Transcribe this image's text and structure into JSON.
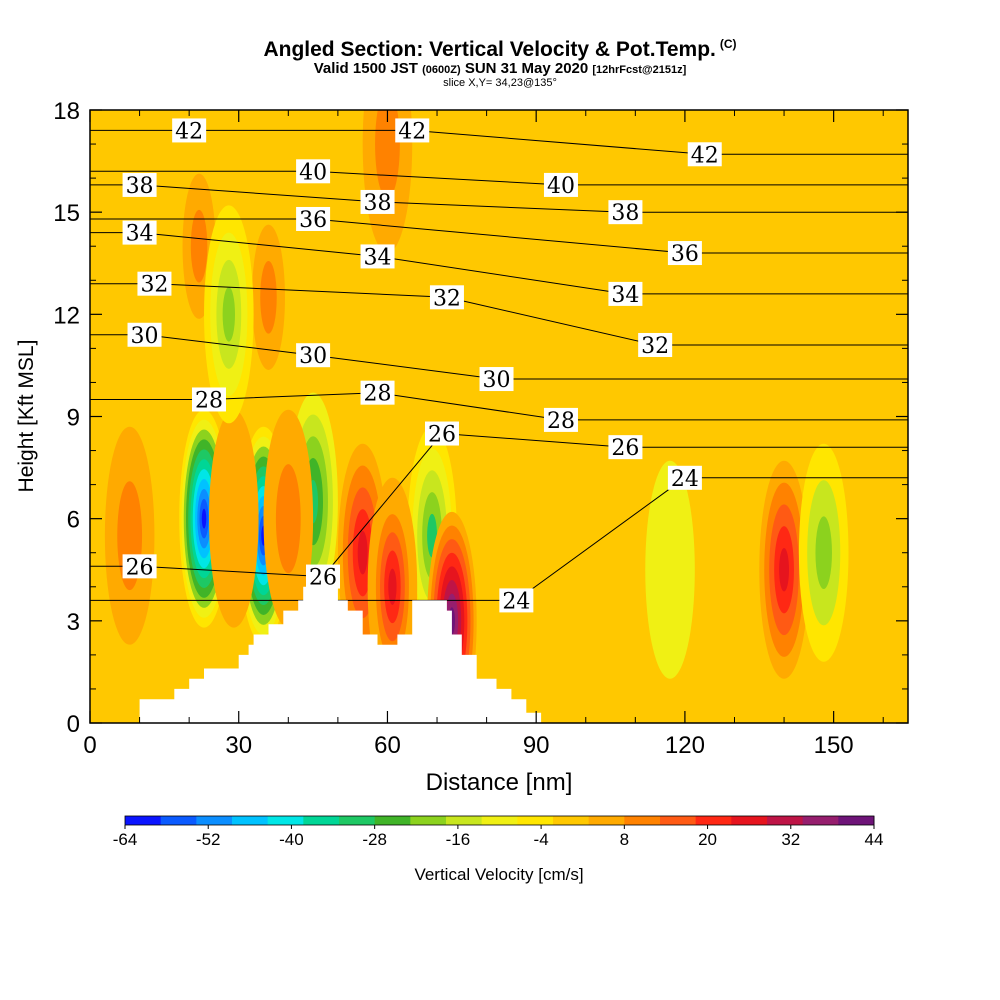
{
  "title": {
    "main": "Angled Section: Vertical Velocity & Pot.Temp.",
    "copyright": "(C)",
    "valid_prefix": "Valid 1500 JST",
    "utc": "(0600Z)",
    "date": "SUN 31 May 2020",
    "forecast": "[12hrFcst@2151z]",
    "slice": "slice X,Y= 34,23@135°"
  },
  "colors": {
    "terrain": "#ffffff",
    "frame": "#000000",
    "contour": "#000000",
    "scale": [
      "#0a14ff",
      "#0a5aff",
      "#0b8eff",
      "#00c2ff",
      "#00e6e6",
      "#00d696",
      "#1ec864",
      "#40b428",
      "#8cd21e",
      "#c8e61e",
      "#f0f014",
      "#ffe600",
      "#ffc800",
      "#ffaa00",
      "#ff8200",
      "#ff5a14",
      "#ff2814",
      "#e6141e",
      "#be1446",
      "#961e6e",
      "#6e1478"
    ]
  },
  "chart_data": {
    "type": "heatmap",
    "xlabel": "Distance [nm]",
    "ylabel": "Height [Kft MSL]",
    "xlim": [
      0,
      165
    ],
    "ylim": [
      0,
      18
    ],
    "xticks": [
      0,
      30,
      60,
      90,
      120,
      150
    ],
    "yticks": [
      0,
      3,
      6,
      9,
      12,
      15,
      18
    ],
    "colorbar": {
      "label": "Vertical Velocity [cm/s]",
      "tick_labels": [
        "-64",
        "-52",
        "-40",
        "-28",
        "-16",
        "-4",
        "8",
        "20",
        "32",
        "44"
      ],
      "range": [
        -64,
        44
      ]
    },
    "contour_labels": [
      {
        "text": "42",
        "x": 20,
        "y": 17.4
      },
      {
        "text": "42",
        "x": 65,
        "y": 17.4
      },
      {
        "text": "42",
        "x": 124,
        "y": 16.7
      },
      {
        "text": "40",
        "x": 45,
        "y": 16.2
      },
      {
        "text": "40",
        "x": 95,
        "y": 15.8
      },
      {
        "text": "38",
        "x": 10,
        "y": 15.8
      },
      {
        "text": "38",
        "x": 58,
        "y": 15.3
      },
      {
        "text": "38",
        "x": 108,
        "y": 15.0
      },
      {
        "text": "36",
        "x": 45,
        "y": 14.8
      },
      {
        "text": "36",
        "x": 120,
        "y": 13.8
      },
      {
        "text": "34",
        "x": 10,
        "y": 14.4
      },
      {
        "text": "34",
        "x": 58,
        "y": 13.7
      },
      {
        "text": "34",
        "x": 108,
        "y": 12.6
      },
      {
        "text": "32",
        "x": 13,
        "y": 12.9
      },
      {
        "text": "32",
        "x": 72,
        "y": 12.5
      },
      {
        "text": "32",
        "x": 114,
        "y": 11.1
      },
      {
        "text": "30",
        "x": 11,
        "y": 11.4
      },
      {
        "text": "30",
        "x": 45,
        "y": 10.8
      },
      {
        "text": "30",
        "x": 82,
        "y": 10.1
      },
      {
        "text": "28",
        "x": 24,
        "y": 9.5
      },
      {
        "text": "28",
        "x": 58,
        "y": 9.7
      },
      {
        "text": "28",
        "x": 95,
        "y": 8.9
      },
      {
        "text": "26",
        "x": 71,
        "y": 8.5
      },
      {
        "text": "26",
        "x": 108,
        "y": 8.1
      },
      {
        "text": "26",
        "x": 10,
        "y": 4.6
      },
      {
        "text": "26",
        "x": 47,
        "y": 4.3
      },
      {
        "text": "24",
        "x": 120,
        "y": 7.2
      },
      {
        "text": "24",
        "x": 86,
        "y": 3.6
      }
    ],
    "velocity_features": [
      {
        "x": 23,
        "y": 6.0,
        "w": -60
      },
      {
        "x": 35,
        "y": 5.5,
        "w": -60
      },
      {
        "x": 45,
        "y": 6.5,
        "w": -30
      },
      {
        "x": 69,
        "y": 5.5,
        "w": -28
      },
      {
        "x": 8,
        "y": 5.5,
        "w": 10
      },
      {
        "x": 29,
        "y": 6.0,
        "w": 8
      },
      {
        "x": 40,
        "y": 6.0,
        "w": 10
      },
      {
        "x": 55,
        "y": 5.0,
        "w": 25
      },
      {
        "x": 61,
        "y": 4.0,
        "w": 28
      },
      {
        "x": 73,
        "y": 3.0,
        "w": 40
      },
      {
        "x": 140,
        "y": 4.5,
        "w": 25
      },
      {
        "x": 22,
        "y": 14.0,
        "w": 12
      },
      {
        "x": 36,
        "y": 12.5,
        "w": 12
      },
      {
        "x": 60,
        "y": 17.0,
        "w": 10
      },
      {
        "x": 28,
        "y": 12.0,
        "w": -22
      },
      {
        "x": 148,
        "y": 5.0,
        "w": -18
      },
      {
        "x": 117,
        "y": 4.5,
        "w": -8
      }
    ],
    "terrain": [
      [
        10,
        0.7
      ],
      [
        17,
        0.7
      ],
      [
        17,
        1.0
      ],
      [
        20,
        1.0
      ],
      [
        20,
        1.3
      ],
      [
        23,
        1.3
      ],
      [
        23,
        1.6
      ],
      [
        30,
        1.6
      ],
      [
        30,
        2.0
      ],
      [
        32,
        2.0
      ],
      [
        32,
        2.3
      ],
      [
        33,
        2.3
      ],
      [
        33,
        2.6
      ],
      [
        36,
        2.6
      ],
      [
        36,
        2.9
      ],
      [
        39,
        2.9
      ],
      [
        39,
        3.3
      ],
      [
        42,
        3.3
      ],
      [
        42,
        3.6
      ],
      [
        43,
        3.6
      ],
      [
        43,
        4.0
      ],
      [
        50,
        4.0
      ],
      [
        50,
        3.6
      ],
      [
        52,
        3.6
      ],
      [
        52,
        3.3
      ],
      [
        55,
        3.3
      ],
      [
        55,
        2.6
      ],
      [
        58,
        2.6
      ],
      [
        58,
        2.3
      ],
      [
        62,
        2.3
      ],
      [
        62,
        2.6
      ],
      [
        65,
        2.6
      ],
      [
        65,
        3.6
      ],
      [
        72,
        3.6
      ],
      [
        72,
        3.3
      ],
      [
        73,
        3.3
      ],
      [
        73,
        2.6
      ],
      [
        75,
        2.6
      ],
      [
        75,
        2.0
      ],
      [
        78,
        2.0
      ],
      [
        78,
        1.3
      ],
      [
        82,
        1.3
      ],
      [
        82,
        1.0
      ],
      [
        85,
        1.0
      ],
      [
        85,
        0.7
      ],
      [
        88,
        0.7
      ],
      [
        88,
        0.3
      ],
      [
        91,
        0.3
      ],
      [
        91,
        0
      ]
    ]
  }
}
